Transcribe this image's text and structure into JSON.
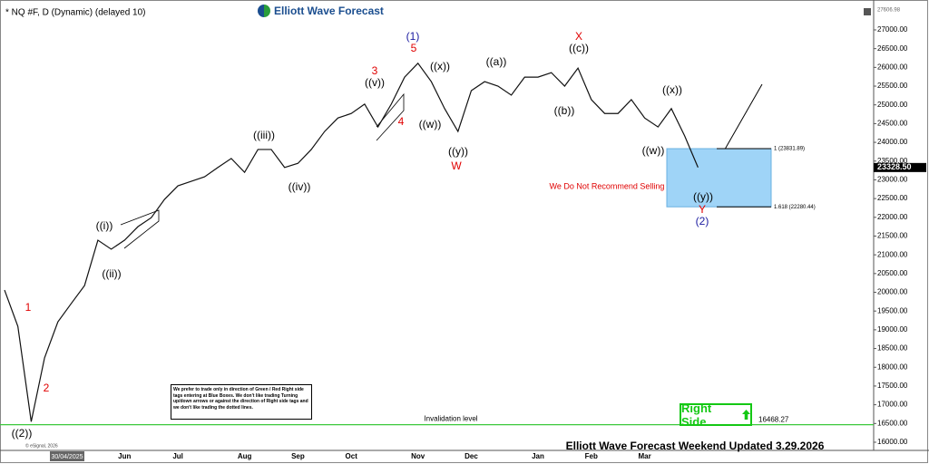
{
  "chart_data": {
    "type": "line",
    "title": "* NQ #F, D (Dynamic) (delayed 10)",
    "logo": "Elliott Wave Forecast",
    "footer": "Elliott Wave Forecast Weekend Updated 3.29.2026",
    "note": "We Do Not Recommend Selling",
    "disclaimer": "We prefer to trade only in direction of Green / Red Right side tags entering at Blue Boxes. We don't like trading Turning up/down arrows or against the direction of Right side tags and we don't like trading the dotted lines.",
    "start_date": "30/04/2025",
    "copyright": "© eSignal, 2026",
    "right_side": "Right Side",
    "invalidation_text": "Invalidation level",
    "invalidation_level": 16468.27,
    "high_price": 27606.98,
    "last_price": {
      "value": 23328.5,
      "label": "23328.50"
    },
    "fib_levels": [
      {
        "value": 23831.89,
        "label": "1 (23831.89)"
      },
      {
        "value": 22280.44,
        "label": "1.618 (22280.44)"
      }
    ],
    "color": "#111111",
    "box_color": "#9fd4f7",
    "invalidation_color": "#3cc83c",
    "categories": [
      null,
      null,
      null,
      null,
      null,
      null,
      null,
      null,
      null,
      "Jun",
      null,
      null,
      null,
      "Jul",
      null,
      null,
      null,
      null,
      "Aug",
      null,
      null,
      null,
      "Sep",
      null,
      null,
      null,
      "Oct",
      null,
      null,
      null,
      null,
      "Nov",
      null,
      null,
      null,
      "Dec",
      null,
      null,
      null,
      null,
      "Jan",
      null,
      null,
      null,
      "Feb",
      null,
      null,
      null,
      "Mar",
      null,
      null,
      null,
      null
    ],
    "values": [
      20060,
      19090,
      16550,
      18250,
      19210,
      19700,
      20180,
      21390,
      21150,
      21390,
      21750,
      21990,
      22480,
      22840,
      22960,
      23080,
      23330,
      23570,
      23200,
      23810,
      23810,
      23330,
      23440,
      23810,
      24290,
      24650,
      24770,
      25020,
      24410,
      25020,
      25740,
      26110,
      25620,
      24900,
      24290,
      25380,
      25620,
      25500,
      25260,
      25740,
      25740,
      25860,
      25500,
      25980,
      25140,
      24770,
      24770,
      25140,
      24650,
      24410,
      24900,
      24170,
      23330
    ],
    "ylim": [
      15782,
      27604
    ],
    "yticks": [
      {
        "value": 16000,
        "label": "16000.00"
      },
      {
        "value": 16500,
        "label": "16500.00"
      },
      {
        "value": 17000,
        "label": "17000.00"
      },
      {
        "value": 17500,
        "label": "17500.00"
      },
      {
        "value": 18000,
        "label": "18000.00"
      },
      {
        "value": 18500,
        "label": "18500.00"
      },
      {
        "value": 19000,
        "label": "19000.00"
      },
      {
        "value": 19500,
        "label": "19500.00"
      },
      {
        "value": 20000,
        "label": "20000.00"
      },
      {
        "value": 20500,
        "label": "20500.00"
      },
      {
        "value": 21000,
        "label": "21000.00"
      },
      {
        "value": 21500,
        "label": "21500.00"
      },
      {
        "value": 22000,
        "label": "22000.00"
      },
      {
        "value": 22500,
        "label": "22500.00"
      },
      {
        "value": 23000,
        "label": "23000.00"
      },
      {
        "value": 23500,
        "label": "23500.00"
      },
      {
        "value": 24000,
        "label": "24000.00"
      },
      {
        "value": 24500,
        "label": "24500.00"
      },
      {
        "value": 25000,
        "label": "25000.00"
      },
      {
        "value": 25500,
        "label": "25500.00"
      },
      {
        "value": 26000,
        "label": "26000.00"
      },
      {
        "value": 26500,
        "label": "26500.00"
      },
      {
        "value": 27000,
        "label": "27000.00"
      }
    ],
    "grid": false,
    "wave_labels": [
      {
        "text": "((2))",
        "color": "#000000"
      },
      {
        "text": "1",
        "color": "#e00000"
      },
      {
        "text": "2",
        "color": "#e00000"
      },
      {
        "text": "((i))",
        "color": "#000000"
      },
      {
        "text": "((ii))",
        "color": "#000000"
      },
      {
        "text": "((iii))",
        "color": "#000000"
      },
      {
        "text": "((iv))",
        "color": "#000000"
      },
      {
        "text": "3",
        "color": "#e00000"
      },
      {
        "text": "((v))",
        "color": "#000000"
      },
      {
        "text": "4",
        "color": "#e00000"
      },
      {
        "text": "(1)",
        "color": "#1a1aa0"
      },
      {
        "text": "5",
        "color": "#e00000"
      },
      {
        "text": "((x))",
        "color": "#000000"
      },
      {
        "text": "((w))",
        "color": "#000000"
      },
      {
        "text": "((y))",
        "color": "#000000"
      },
      {
        "text": "W",
        "color": "#e00000"
      },
      {
        "text": "((a))",
        "color": "#000000"
      },
      {
        "text": "((b))",
        "color": "#000000"
      },
      {
        "text": "X",
        "color": "#e00000"
      },
      {
        "text": "((c))",
        "color": "#000000"
      },
      {
        "text": "((x))",
        "color": "#000000"
      },
      {
        "text": "((w))",
        "color": "#000000"
      },
      {
        "text": "((y))",
        "color": "#000000"
      },
      {
        "text": "Y",
        "color": "#e00000"
      },
      {
        "text": "(2)",
        "color": "#1a1aa0"
      }
    ]
  }
}
